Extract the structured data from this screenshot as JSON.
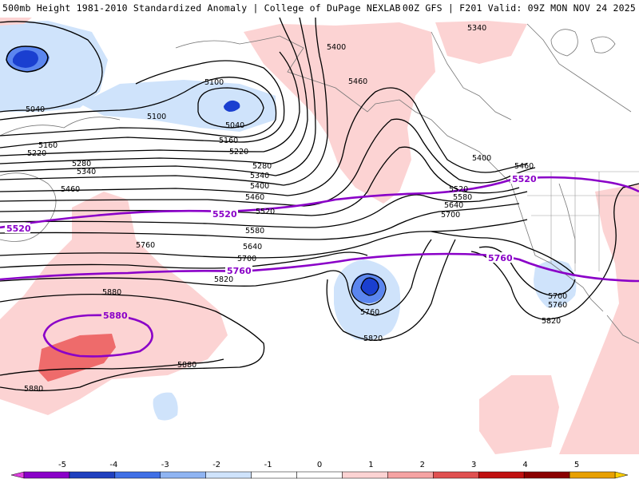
{
  "header": {
    "title": "500mb Height 1981-2010 Standardized Anomaly | College of DuPage NEXLAB",
    "run_info": "00Z GFS | F201 Valid: 09Z MON NOV 24 2025"
  },
  "colors": {
    "neg_strong": "#1a3fd0",
    "neg_mid": "#5b86ef",
    "neg_light": "#cfe3fb",
    "pos_light": "#fcd3d3",
    "pos_mid": "#ee6b6b",
    "climo_contour": "#8a00c8",
    "contour": "#000000"
  },
  "contour_labels": {
    "c5040a": "5040",
    "c5040b": "5040",
    "c5100a": "5100",
    "c5100b": "5100",
    "c5160": "5160",
    "c5160b": "5160",
    "c5220": "5220",
    "c5220b": "5220",
    "c5280": "5280",
    "c5280b": "5280",
    "c5340": "5340",
    "c5340b": "5340",
    "c5340c": "5340",
    "c5400a": "5400",
    "c5400b": "5400",
    "c5400c": "5400",
    "c5460a": "5460",
    "c5460b": "5460",
    "c5460c": "5460",
    "c5460d": "5460",
    "c5520a": "5520",
    "c5520b": "5520",
    "c5580a": "5580",
    "c5580b": "5580",
    "c5640a": "5640",
    "c5640b": "5640",
    "c5700a": "5700",
    "c5700b": "5700",
    "c5700c": "5700",
    "c5760a": "5760",
    "c5760b": "5760",
    "c5760c": "5760",
    "c5820a": "5820",
    "c5820b": "5820",
    "c5820c": "5820",
    "c5880a": "5880",
    "c5880b": "5880",
    "c5880c": "5880"
  },
  "climo_labels": {
    "p5520a": "5520",
    "p5520b": "5520",
    "p5520c": "5520",
    "p5760a": "5760",
    "p5760b": "5760",
    "p5880": "5880"
  },
  "legend": {
    "ticks": [
      "-5",
      "-4",
      "-3",
      "-2",
      "-1",
      "0",
      "1",
      "2",
      "3",
      "4",
      "5"
    ],
    "colors": [
      "#e040e0",
      "#8a00c8",
      "#1f3fbf",
      "#3f6fe6",
      "#8fb4f2",
      "#cfe3fb",
      "#ffffff",
      "#ffffff",
      "#fcd3d3",
      "#f5a3a3",
      "#e05050",
      "#c01010",
      "#8b0000",
      "#e8a000",
      "#ffd000"
    ]
  }
}
